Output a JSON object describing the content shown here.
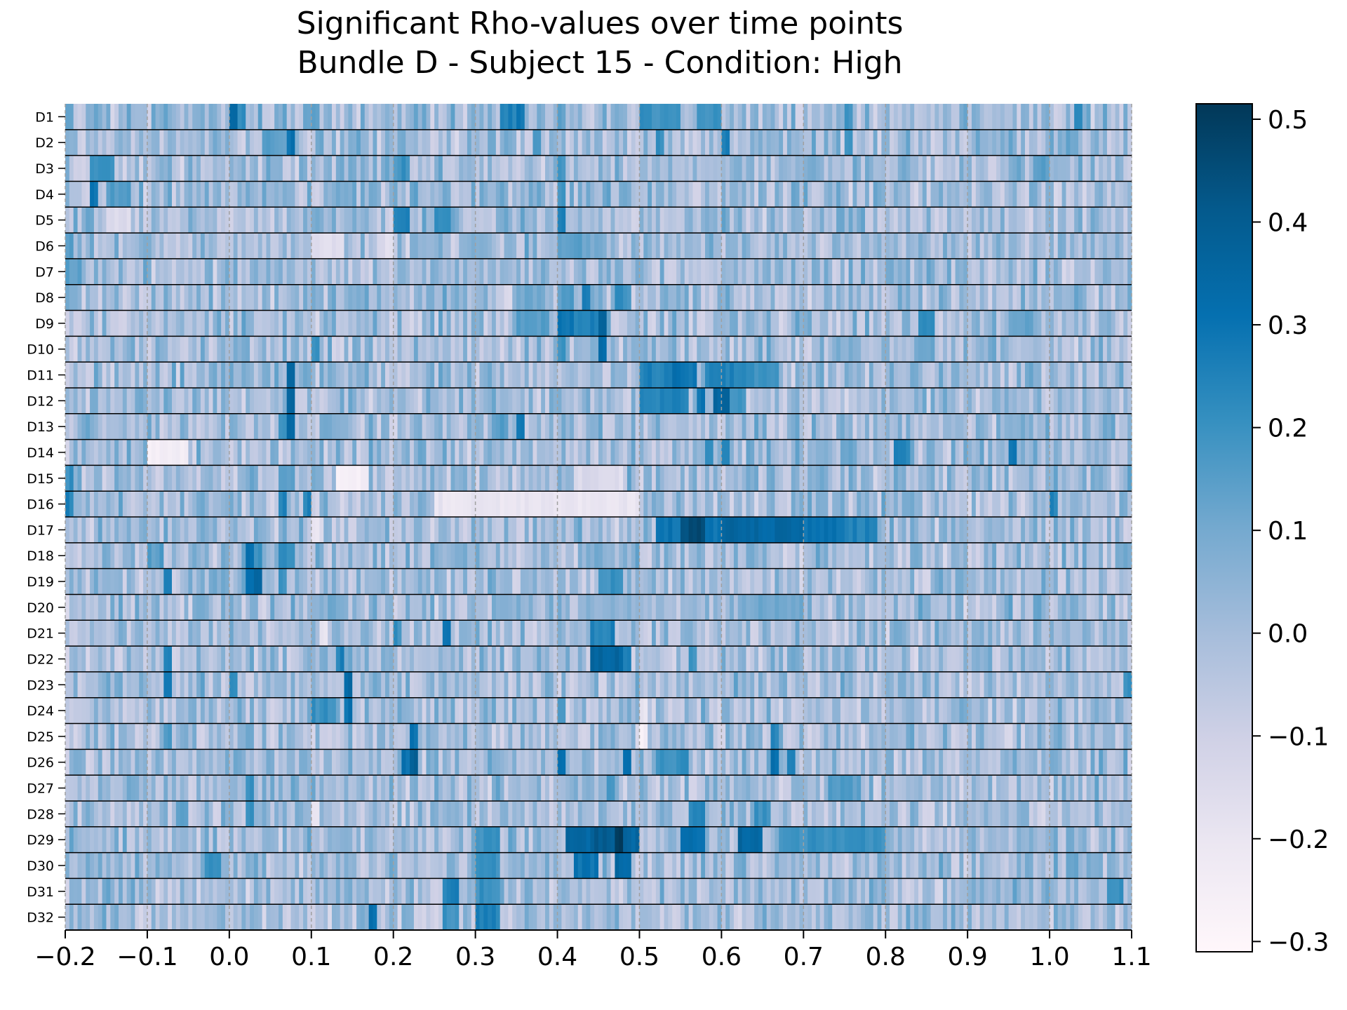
{
  "chart_data": {
    "type": "heatmap",
    "title_line1": "Significant Rho-values over time points",
    "title_line2": "Bundle D - Subject 15 - Condition: High",
    "xlabel": "",
    "ylabel": "",
    "x_range": [
      -0.2,
      1.1
    ],
    "x_ticks": [
      -0.2,
      -0.1,
      0.0,
      0.1,
      0.2,
      0.3,
      0.4,
      0.5,
      0.6,
      0.7,
      0.8,
      0.9,
      1.0,
      1.1
    ],
    "x_tick_labels": [
      "−0.2",
      "−0.1",
      "0.0",
      "0.1",
      "0.2",
      "0.3",
      "0.4",
      "0.5",
      "0.6",
      "0.7",
      "0.8",
      "0.9",
      "1.0",
      "1.1"
    ],
    "rows": [
      "D1",
      "D2",
      "D3",
      "D4",
      "D5",
      "D6",
      "D7",
      "D8",
      "D9",
      "D10",
      "D11",
      "D12",
      "D13",
      "D14",
      "D15",
      "D16",
      "D17",
      "D18",
      "D19",
      "D20",
      "D21",
      "D22",
      "D23",
      "D24",
      "D25",
      "D26",
      "D27",
      "D28",
      "D29",
      "D30",
      "D31",
      "D32"
    ],
    "time_step": 0.005,
    "baseline_rho": 0.0,
    "colorbar": {
      "colormap": "PuBu",
      "range": [
        -0.31,
        0.515
      ],
      "ticks": [
        -0.3,
        -0.2,
        -0.1,
        0.0,
        0.1,
        0.2,
        0.3,
        0.4,
        0.5
      ],
      "tick_labels": [
        "−0.3",
        "−0.2",
        "−0.1",
        "0.0",
        "0.1",
        "0.2",
        "0.3",
        "0.4",
        "0.5"
      ]
    },
    "vertical_gridlines": "dashed at each x tick",
    "row_separators": "solid black lines between rows",
    "segments": {
      "D1": [
        [
          -0.2,
          -0.19,
          0.15
        ],
        [
          0.0,
          0.01,
          0.33
        ],
        [
          0.01,
          0.02,
          0.22
        ],
        [
          0.1,
          0.11,
          0.12
        ],
        [
          0.33,
          0.35,
          0.25
        ],
        [
          0.35,
          0.36,
          0.3
        ],
        [
          0.4,
          0.41,
          0.15
        ],
        [
          0.5,
          0.55,
          0.2
        ],
        [
          0.57,
          0.6,
          0.2
        ],
        [
          0.75,
          0.76,
          0.2
        ],
        [
          1.03,
          1.04,
          0.25
        ]
      ],
      "D2": [
        [
          0.07,
          0.08,
          0.3
        ],
        [
          0.04,
          0.07,
          0.15
        ],
        [
          0.37,
          0.38,
          0.15
        ],
        [
          0.52,
          0.53,
          0.2
        ],
        [
          0.6,
          0.61,
          0.25
        ],
        [
          0.75,
          0.76,
          0.2
        ]
      ],
      "D3": [
        [
          -0.17,
          -0.14,
          0.2
        ],
        [
          0.21,
          0.22,
          0.2
        ],
        [
          0.4,
          0.41,
          0.2
        ],
        [
          0.2,
          0.21,
          0.15
        ],
        [
          0.98,
          1.0,
          0.15
        ]
      ],
      "D4": [
        [
          -0.17,
          -0.16,
          0.3
        ],
        [
          -0.15,
          -0.12,
          0.15
        ],
        [
          0.4,
          0.41,
          0.2
        ],
        [
          0.22,
          0.23,
          0.15
        ]
      ],
      "D5": [
        [
          0.2,
          0.22,
          0.25
        ],
        [
          0.25,
          0.27,
          0.2
        ],
        [
          0.4,
          0.41,
          0.25
        ],
        [
          0.3,
          0.32,
          -0.05
        ],
        [
          -0.15,
          -0.12,
          -0.15
        ]
      ],
      "D6": [
        [
          0.4,
          0.43,
          0.15
        ],
        [
          0.43,
          0.46,
          0.1
        ],
        [
          -0.2,
          -0.19,
          0.15
        ],
        [
          0.1,
          0.14,
          -0.15
        ],
        [
          0.18,
          0.2,
          -0.15
        ]
      ],
      "D7": [
        [
          -0.2,
          -0.18,
          0.15
        ],
        [
          -0.03,
          -0.02,
          0.1
        ],
        [
          0.85,
          0.86,
          0.1
        ]
      ],
      "D8": [
        [
          0.35,
          0.38,
          0.1
        ],
        [
          0.4,
          0.42,
          0.15
        ],
        [
          0.43,
          0.44,
          0.25
        ],
        [
          0.47,
          0.49,
          0.2
        ],
        [
          0.12,
          0.13,
          0.1
        ]
      ],
      "D9": [
        [
          0.4,
          0.42,
          0.3
        ],
        [
          0.42,
          0.45,
          0.25
        ],
        [
          0.45,
          0.46,
          0.35
        ],
        [
          0.35,
          0.39,
          0.15
        ],
        [
          0.84,
          0.86,
          0.2
        ],
        [
          0.95,
          0.98,
          0.12
        ]
      ],
      "D10": [
        [
          0.4,
          0.41,
          0.2
        ],
        [
          0.45,
          0.46,
          0.35
        ],
        [
          0.1,
          0.11,
          0.2
        ],
        [
          0.84,
          0.86,
          0.12
        ]
      ],
      "D11": [
        [
          0.5,
          0.54,
          0.25
        ],
        [
          0.54,
          0.57,
          0.3
        ],
        [
          0.58,
          0.6,
          0.25
        ],
        [
          0.6,
          0.63,
          0.25
        ],
        [
          0.63,
          0.67,
          0.2
        ],
        [
          0.07,
          0.08,
          0.35
        ]
      ],
      "D12": [
        [
          0.5,
          0.56,
          0.25
        ],
        [
          0.57,
          0.58,
          0.3
        ],
        [
          0.59,
          0.61,
          0.35
        ],
        [
          0.61,
          0.63,
          0.2
        ],
        [
          0.07,
          0.08,
          0.35
        ]
      ],
      "D13": [
        [
          0.07,
          0.08,
          0.35
        ],
        [
          0.35,
          0.36,
          0.3
        ],
        [
          0.32,
          0.34,
          0.15
        ],
        [
          0.06,
          0.07,
          0.2
        ]
      ],
      "D14": [
        [
          0.81,
          0.83,
          0.25
        ],
        [
          0.95,
          0.96,
          0.3
        ],
        [
          0.58,
          0.59,
          0.2
        ],
        [
          0.6,
          0.61,
          0.25
        ],
        [
          -0.1,
          -0.05,
          -0.25
        ]
      ],
      "D15": [
        [
          -0.2,
          -0.19,
          0.2
        ],
        [
          0.06,
          0.08,
          0.15
        ],
        [
          0.13,
          0.17,
          -0.25
        ],
        [
          0.42,
          0.48,
          -0.15
        ]
      ],
      "D16": [
        [
          -0.2,
          -0.19,
          0.25
        ],
        [
          0.06,
          0.07,
          0.25
        ],
        [
          0.09,
          0.1,
          0.25
        ],
        [
          0.25,
          0.5,
          -0.2
        ],
        [
          1.0,
          1.01,
          0.25
        ]
      ],
      "D17": [
        [
          0.1,
          0.11,
          -0.2
        ],
        [
          0.52,
          0.55,
          0.3
        ],
        [
          0.55,
          0.58,
          0.45
        ],
        [
          0.58,
          0.6,
          0.3
        ],
        [
          0.6,
          0.7,
          0.35
        ],
        [
          0.7,
          0.75,
          0.3
        ],
        [
          0.75,
          0.79,
          0.25
        ]
      ],
      "D18": [
        [
          0.02,
          0.03,
          0.3
        ],
        [
          0.03,
          0.04,
          0.2
        ],
        [
          0.06,
          0.08,
          0.2
        ],
        [
          -0.1,
          -0.08,
          0.15
        ]
      ],
      "D19": [
        [
          0.02,
          0.03,
          0.3
        ],
        [
          0.03,
          0.04,
          0.35
        ],
        [
          0.06,
          0.07,
          0.2
        ],
        [
          -0.08,
          -0.07,
          0.25
        ],
        [
          0.45,
          0.48,
          0.2
        ]
      ],
      "D20": [
        [
          0.12,
          0.13,
          0.1
        ],
        [
          0.43,
          0.5,
          0.05
        ],
        [
          0.62,
          0.7,
          0.1
        ]
      ],
      "D21": [
        [
          0.26,
          0.27,
          0.3
        ],
        [
          0.44,
          0.47,
          0.25
        ],
        [
          0.2,
          0.21,
          0.2
        ],
        [
          0.11,
          0.12,
          -0.2
        ]
      ],
      "D22": [
        [
          0.44,
          0.48,
          0.35
        ],
        [
          0.48,
          0.49,
          0.25
        ],
        [
          0.13,
          0.14,
          0.25
        ],
        [
          -0.08,
          -0.07,
          0.25
        ],
        [
          0.56,
          0.57,
          0.2
        ]
      ],
      "D23": [
        [
          0.14,
          0.15,
          0.35
        ],
        [
          -0.08,
          -0.07,
          0.25
        ],
        [
          0.0,
          0.01,
          0.2
        ],
        [
          1.09,
          1.1,
          0.2
        ]
      ],
      "D24": [
        [
          0.1,
          0.13,
          0.2
        ],
        [
          0.14,
          0.15,
          0.3
        ],
        [
          0.4,
          0.41,
          0.2
        ],
        [
          0.5,
          0.51,
          -0.2
        ]
      ],
      "D25": [
        [
          0.22,
          0.23,
          0.3
        ],
        [
          0.66,
          0.67,
          0.25
        ],
        [
          0.5,
          0.51,
          -0.25
        ],
        [
          -0.08,
          -0.07,
          0.15
        ]
      ],
      "D26": [
        [
          0.21,
          0.22,
          0.3
        ],
        [
          0.22,
          0.23,
          0.4
        ],
        [
          0.4,
          0.41,
          0.3
        ],
        [
          0.48,
          0.49,
          0.3
        ],
        [
          0.52,
          0.56,
          0.2
        ],
        [
          0.66,
          0.67,
          0.3
        ],
        [
          0.68,
          0.69,
          0.25
        ]
      ],
      "D27": [
        [
          0.02,
          0.03,
          0.2
        ],
        [
          0.73,
          0.77,
          0.15
        ],
        [
          0.46,
          0.47,
          0.2
        ]
      ],
      "D28": [
        [
          0.02,
          0.03,
          0.2
        ],
        [
          0.56,
          0.58,
          0.25
        ],
        [
          0.64,
          0.66,
          0.2
        ],
        [
          0.1,
          0.11,
          -0.2
        ]
      ],
      "D29": [
        [
          0.41,
          0.44,
          0.35
        ],
        [
          0.44,
          0.47,
          0.4
        ],
        [
          0.47,
          0.48,
          0.5
        ],
        [
          0.48,
          0.5,
          0.35
        ],
        [
          0.55,
          0.58,
          0.3
        ],
        [
          0.62,
          0.65,
          0.35
        ],
        [
          0.67,
          0.8,
          0.2
        ],
        [
          0.3,
          0.33,
          0.2
        ]
      ],
      "D30": [
        [
          0.3,
          0.33,
          0.2
        ],
        [
          0.42,
          0.45,
          0.3
        ],
        [
          0.47,
          0.49,
          0.35
        ],
        [
          -0.03,
          -0.01,
          0.2
        ]
      ],
      "D31": [
        [
          0.26,
          0.28,
          0.25
        ],
        [
          0.3,
          0.33,
          0.2
        ],
        [
          1.07,
          1.09,
          0.2
        ]
      ],
      "D32": [
        [
          0.3,
          0.33,
          0.25
        ],
        [
          0.17,
          0.18,
          0.3
        ],
        [
          0.26,
          0.28,
          0.2
        ]
      ]
    }
  }
}
